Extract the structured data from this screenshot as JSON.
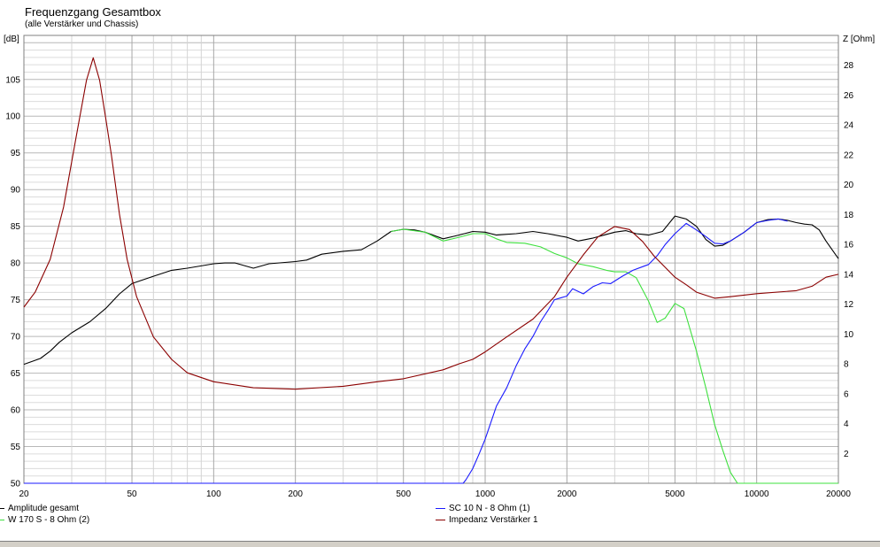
{
  "chart_data": {
    "type": "line",
    "title": "Frequenzgang Gesamtbox",
    "subtitle": "(alle Verstärker und Chassis)",
    "ylabel_left": "[dB]",
    "ylabel_right": "Z [Ohm]",
    "x_scale": "log",
    "xlim": [
      20,
      20000
    ],
    "ylim_left": [
      50,
      111
    ],
    "ylim_right": [
      0,
      30
    ],
    "grid": true,
    "x_ticks": [
      20,
      50,
      100,
      200,
      500,
      1000,
      2000,
      5000,
      10000,
      20000
    ],
    "y_ticks_left": [
      50,
      55,
      60,
      65,
      70,
      75,
      80,
      85,
      90,
      95,
      100,
      105
    ],
    "y_ticks_right": [
      2,
      4,
      6,
      8,
      10,
      12,
      14,
      16,
      18,
      20,
      22,
      24,
      26,
      28
    ],
    "series": [
      {
        "name": "Amplitude gesamt",
        "color": "#000000",
        "axis": "left",
        "points": [
          [
            20,
            66.2
          ],
          [
            23,
            67
          ],
          [
            25,
            68
          ],
          [
            27,
            69.2
          ],
          [
            30,
            70.5
          ],
          [
            35,
            72
          ],
          [
            40,
            73.8
          ],
          [
            45,
            75.8
          ],
          [
            50,
            77.2
          ],
          [
            60,
            78.2
          ],
          [
            70,
            79
          ],
          [
            80,
            79.3
          ],
          [
            100,
            79.9
          ],
          [
            110,
            80
          ],
          [
            120,
            80
          ],
          [
            140,
            79.3
          ],
          [
            160,
            79.9
          ],
          [
            200,
            80.2
          ],
          [
            220,
            80.4
          ],
          [
            250,
            81.2
          ],
          [
            300,
            81.6
          ],
          [
            350,
            81.8
          ],
          [
            400,
            83
          ],
          [
            450,
            84.3
          ],
          [
            500,
            84.6
          ],
          [
            550,
            84.5
          ],
          [
            600,
            84.2
          ],
          [
            700,
            83.3
          ],
          [
            800,
            83.8
          ],
          [
            900,
            84.3
          ],
          [
            1000,
            84.2
          ],
          [
            1100,
            83.8
          ],
          [
            1300,
            84
          ],
          [
            1500,
            84.3
          ],
          [
            1700,
            84
          ],
          [
            2000,
            83.5
          ],
          [
            2200,
            83
          ],
          [
            2500,
            83.4
          ],
          [
            2800,
            83.9
          ],
          [
            3000,
            84.2
          ],
          [
            3300,
            84.4
          ],
          [
            3600,
            84
          ],
          [
            4000,
            83.8
          ],
          [
            4500,
            84.3
          ],
          [
            5000,
            86.4
          ],
          [
            5500,
            86
          ],
          [
            6000,
            85
          ],
          [
            6500,
            83.2
          ],
          [
            7000,
            82.3
          ],
          [
            7500,
            82.4
          ],
          [
            8000,
            83
          ],
          [
            9000,
            84.2
          ],
          [
            10000,
            85.5
          ],
          [
            11000,
            85.9
          ],
          [
            12000,
            86
          ],
          [
            13000,
            85.8
          ],
          [
            14000,
            85.5
          ],
          [
            15000,
            85.3
          ],
          [
            16000,
            85.2
          ],
          [
            17000,
            84.5
          ],
          [
            18000,
            83
          ],
          [
            20000,
            80.6
          ]
        ]
      },
      {
        "name": "W 170 S - 8 Ohm (2)",
        "color": "#3ee03e",
        "axis": "left",
        "points": [
          [
            450,
            84.3
          ],
          [
            500,
            84.6
          ],
          [
            600,
            84.2
          ],
          [
            700,
            83
          ],
          [
            800,
            83.5
          ],
          [
            900,
            84
          ],
          [
            1000,
            84
          ],
          [
            1100,
            83.3
          ],
          [
            1200,
            82.8
          ],
          [
            1400,
            82.7
          ],
          [
            1600,
            82.2
          ],
          [
            1800,
            81.3
          ],
          [
            2000,
            80.7
          ],
          [
            2200,
            79.9
          ],
          [
            2500,
            79.5
          ],
          [
            2800,
            79
          ],
          [
            3000,
            78.8
          ],
          [
            3300,
            78.8
          ],
          [
            3600,
            78
          ],
          [
            4000,
            74.8
          ],
          [
            4300,
            71.9
          ],
          [
            4600,
            72.5
          ],
          [
            5000,
            74.5
          ],
          [
            5400,
            73.8
          ],
          [
            6000,
            68
          ],
          [
            6500,
            63
          ],
          [
            7000,
            58
          ],
          [
            7500,
            54.5
          ],
          [
            8000,
            51.5
          ],
          [
            8500,
            50
          ],
          [
            20000,
            50
          ]
        ]
      },
      {
        "name": "SC 10 N - 8 Ohm (1)",
        "color": "#1a1aff",
        "axis": "left",
        "points": [
          [
            20,
            50
          ],
          [
            830,
            50
          ],
          [
            850,
            50.5
          ],
          [
            900,
            52
          ],
          [
            950,
            54
          ],
          [
            1000,
            56
          ],
          [
            1100,
            60.5
          ],
          [
            1200,
            63
          ],
          [
            1300,
            66
          ],
          [
            1400,
            68.3
          ],
          [
            1500,
            70
          ],
          [
            1600,
            72
          ],
          [
            1700,
            73.5
          ],
          [
            1800,
            75
          ],
          [
            2000,
            75.5
          ],
          [
            2100,
            76.5
          ],
          [
            2300,
            75.8
          ],
          [
            2500,
            76.8
          ],
          [
            2700,
            77.3
          ],
          [
            2900,
            77.2
          ],
          [
            3200,
            78.2
          ],
          [
            3500,
            79
          ],
          [
            3800,
            79.5
          ],
          [
            4000,
            79.8
          ],
          [
            4300,
            81
          ],
          [
            4600,
            82.5
          ],
          [
            5000,
            84
          ],
          [
            5500,
            85.4
          ],
          [
            6000,
            84.5
          ],
          [
            6500,
            83.6
          ],
          [
            7000,
            82.7
          ],
          [
            7500,
            82.6
          ],
          [
            8000,
            83
          ],
          [
            9000,
            84.2
          ],
          [
            10000,
            85.5
          ],
          [
            11000,
            85.8
          ],
          [
            12000,
            86
          ],
          [
            13000,
            85.7
          ]
        ]
      },
      {
        "name": "Impedanz Verstärker 1",
        "color": "#8b0000",
        "axis": "right",
        "points": [
          [
            20,
            11.8
          ],
          [
            22,
            12.8
          ],
          [
            25,
            15
          ],
          [
            28,
            18.5
          ],
          [
            31,
            23
          ],
          [
            34,
            27
          ],
          [
            36,
            28.5
          ],
          [
            38,
            27
          ],
          [
            40,
            24.5
          ],
          [
            42,
            22
          ],
          [
            45,
            18
          ],
          [
            48,
            15
          ],
          [
            52,
            12.5
          ],
          [
            60,
            9.8
          ],
          [
            70,
            8.3
          ],
          [
            80,
            7.4
          ],
          [
            100,
            6.8
          ],
          [
            140,
            6.4
          ],
          [
            200,
            6.3
          ],
          [
            300,
            6.5
          ],
          [
            400,
            6.8
          ],
          [
            500,
            7
          ],
          [
            700,
            7.6
          ],
          [
            800,
            8
          ],
          [
            900,
            8.3
          ],
          [
            1000,
            8.8
          ],
          [
            1200,
            9.8
          ],
          [
            1500,
            11
          ],
          [
            1800,
            12.5
          ],
          [
            2000,
            13.8
          ],
          [
            2300,
            15.3
          ],
          [
            2600,
            16.5
          ],
          [
            3000,
            17.2
          ],
          [
            3400,
            17
          ],
          [
            3800,
            16.2
          ],
          [
            4200,
            15.2
          ],
          [
            5000,
            13.8
          ],
          [
            5500,
            13.3
          ],
          [
            6000,
            12.8
          ],
          [
            7000,
            12.4
          ],
          [
            8000,
            12.5
          ],
          [
            10000,
            12.7
          ],
          [
            14000,
            12.9
          ],
          [
            16000,
            13.2
          ],
          [
            18000,
            13.8
          ],
          [
            20000,
            14
          ]
        ]
      }
    ]
  }
}
